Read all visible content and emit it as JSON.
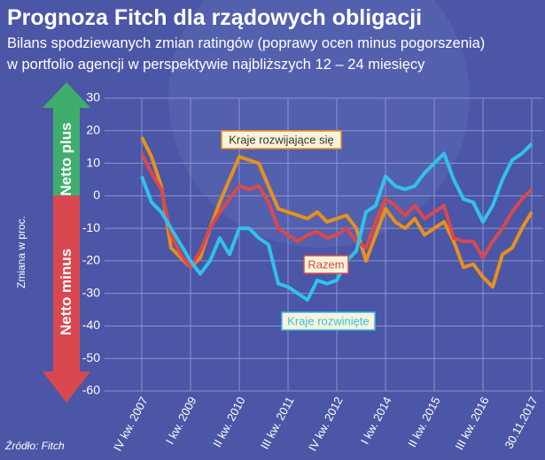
{
  "chart_data": {
    "type": "line",
    "title": "Prognoza Fitch dla rządowych obligacji",
    "subtitle": [
      "Bilans spodziewanych zmian ratingów (poprawy ocen minus pogorszenia)",
      "w portfolio agencji w perspektywie najbliższych 12 – 24 miesięcy"
    ],
    "y_label": "Zmiana w proc.",
    "source": "Źródło: Fitch",
    "arrow_labels": [
      "Netto plus",
      "Netto minus"
    ],
    "categories": [
      "IV kw. 2007",
      null,
      null,
      null,
      null,
      "I kw. 2009",
      null,
      null,
      null,
      null,
      "II kw. 2010",
      null,
      null,
      null,
      null,
      "III kw. 2011",
      null,
      null,
      null,
      null,
      "IV kw. 2012",
      null,
      null,
      null,
      null,
      "I kw. 2014",
      null,
      null,
      null,
      null,
      "II kw. 2015",
      null,
      null,
      null,
      null,
      "III kw. 2016",
      null,
      null,
      null,
      null,
      "30.11.2017"
    ],
    "series": [
      {
        "name": "Kraje rozwijające się",
        "color": "#e8901c",
        "values": [
          18,
          12,
          3,
          -16,
          -19,
          -22,
          -19,
          -10,
          -2,
          5,
          12,
          11,
          10,
          3,
          -4,
          -5,
          -6,
          -7,
          -5,
          -8,
          -7,
          -6,
          -10,
          -20,
          -12,
          -4,
          -8,
          -10,
          -7,
          -12,
          -10,
          -8,
          -14,
          -22,
          -21,
          -25,
          -28,
          -18,
          -16,
          -10,
          -5
        ]
      },
      {
        "name": "Razem",
        "color": "#d9484f",
        "values": [
          13,
          7,
          2,
          -12,
          -18,
          -22,
          -17,
          -10,
          -5,
          -1,
          3,
          2,
          3,
          -2,
          -10,
          -12,
          -14,
          -12,
          -11,
          -13,
          -12,
          -10,
          -14,
          -16,
          -8,
          -1,
          -3,
          -6,
          -3,
          -7,
          -5,
          -3,
          -13,
          -14,
          -14,
          -19,
          -14,
          -10,
          -5,
          -1,
          2
        ]
      },
      {
        "name": "Kraje rozwinięte",
        "color": "#30c2ec",
        "values": [
          6,
          -2,
          -5,
          -10,
          -15,
          -20,
          -24,
          -20,
          -13,
          -18,
          -10,
          -10,
          -13,
          -15,
          -27,
          -28,
          -30,
          -32,
          -26,
          -27,
          -26,
          -20,
          -17,
          -5,
          -3,
          6,
          3,
          2,
          3,
          7,
          10,
          13,
          5,
          -1,
          -2,
          -8,
          -3,
          5,
          11,
          13,
          16
        ]
      }
    ],
    "ylim": [
      -60,
      30
    ],
    "yticks": [
      -60,
      -50,
      -40,
      -30,
      -20,
      -10,
      0,
      10,
      20,
      30
    ],
    "grid": true
  }
}
